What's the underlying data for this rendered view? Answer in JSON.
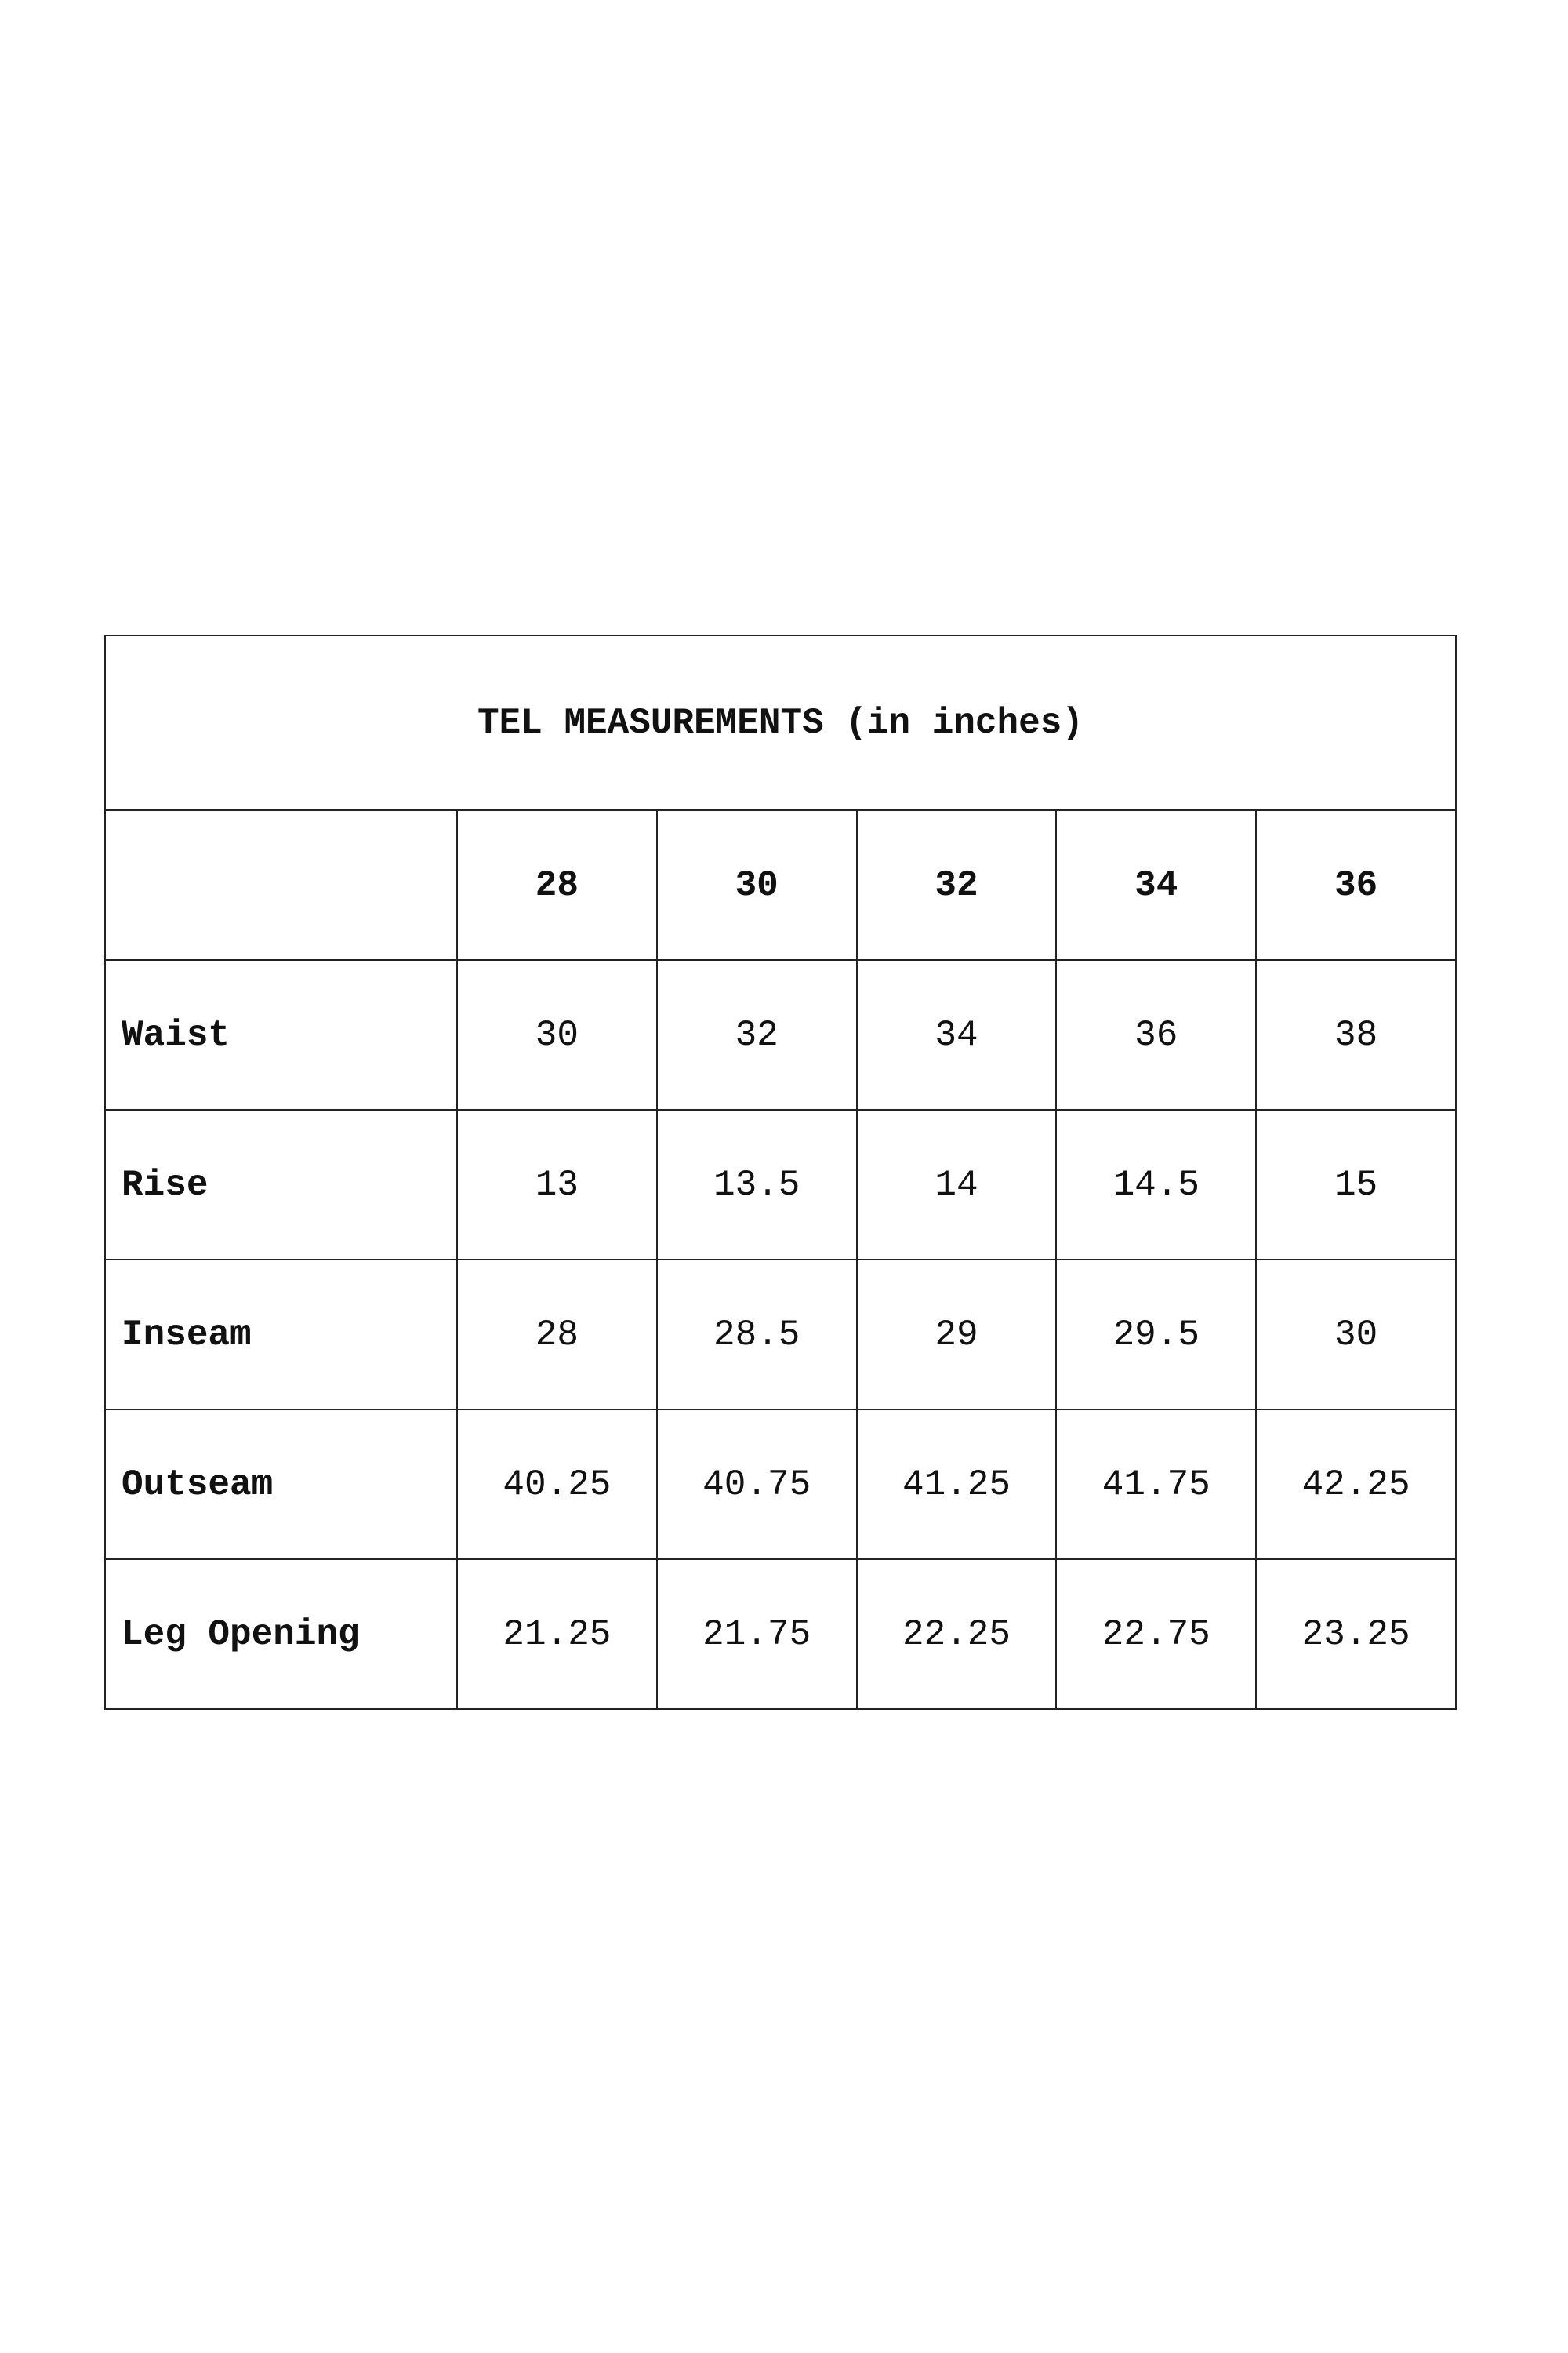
{
  "title": "TEL MEASUREMENTS (in inches)",
  "table": {
    "columns": [
      "",
      "28",
      "30",
      "32",
      "34",
      "36"
    ],
    "rows": [
      {
        "label": "Waist",
        "values": [
          "30",
          "32",
          "34",
          "36",
          "38"
        ]
      },
      {
        "label": "Rise",
        "values": [
          "13",
          "13.5",
          "14",
          "14.5",
          "15"
        ]
      },
      {
        "label": "Inseam",
        "values": [
          "28",
          "28.5",
          "29",
          "29.5",
          "30"
        ]
      },
      {
        "label": "Outseam",
        "values": [
          "40.25",
          "40.75",
          "41.25",
          "41.75",
          "42.25"
        ]
      },
      {
        "label": "Leg Opening",
        "values": [
          "21.25",
          "21.75",
          "22.25",
          "22.75",
          "23.25"
        ]
      }
    ]
  }
}
